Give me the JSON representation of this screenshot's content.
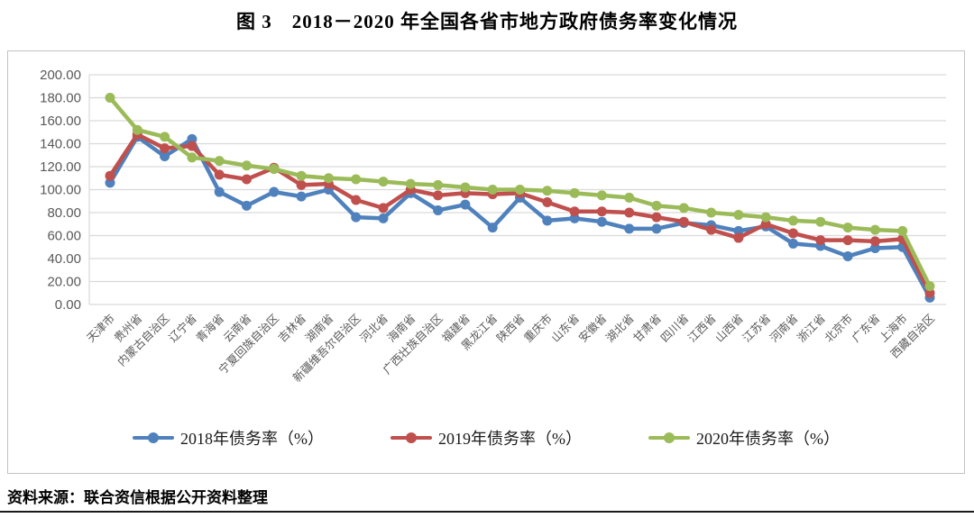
{
  "title": "图 3　2018－2020 年全国各省市地方政府债务率变化情况",
  "source_note": "资料来源：联合资信根据公开资料整理",
  "chart_data": {
    "type": "line",
    "title": "图 3　2018－2020 年全国各省市地方政府债务率变化情况",
    "categories": [
      "天津市",
      "贵州省",
      "内蒙古自治区",
      "辽宁省",
      "青海省",
      "云南省",
      "宁夏回族自治区",
      "吉林省",
      "湖南省",
      "新疆维吾尔自治区",
      "河北省",
      "海南省",
      "广西壮族自治区",
      "福建省",
      "黑龙江省",
      "陕西省",
      "重庆市",
      "山东省",
      "安徽省",
      "湖北省",
      "甘肃省",
      "四川省",
      "江西省",
      "山西省",
      "江苏省",
      "河南省",
      "浙江省",
      "北京市",
      "广东省",
      "上海市",
      "西藏自治区"
    ],
    "series": [
      {
        "name": "2018年债务率（%）",
        "color": "#4F81BD",
        "values": [
          106,
          146,
          129,
          144,
          98,
          86,
          98,
          94,
          100,
          76,
          75,
          97,
          82,
          87,
          67,
          93,
          73,
          75,
          72,
          66,
          66,
          71,
          69,
          64,
          68,
          53,
          51,
          42,
          49,
          50,
          6
        ]
      },
      {
        "name": "2019年债务率（%）",
        "color": "#C0504D",
        "values": [
          112,
          148,
          136,
          138,
          113,
          109,
          119,
          104,
          105,
          91,
          84,
          100,
          95,
          97,
          96,
          97,
          89,
          81,
          81,
          80,
          76,
          72,
          65,
          58,
          70,
          62,
          56,
          56,
          55,
          57,
          10
        ]
      },
      {
        "name": "2020年债务率（%）",
        "color": "#9BBB59",
        "values": [
          180,
          152,
          146,
          128,
          125,
          121,
          118,
          112,
          110,
          109,
          107,
          105,
          104,
          102,
          100,
          100,
          99,
          97,
          95,
          93,
          86,
          84,
          80,
          78,
          76,
          73,
          72,
          67,
          65,
          64,
          16
        ]
      }
    ],
    "ylim": [
      0,
      200
    ],
    "ytick_step": 20,
    "ytick_labels": [
      "0.00",
      "20.00",
      "40.00",
      "60.00",
      "80.00",
      "100.00",
      "120.00",
      "140.00",
      "160.00",
      "180.00",
      "200.00"
    ],
    "grid": "horizontal-only",
    "grid_color": "#D9D9D9",
    "axis_text_color": "#595959",
    "x_label_rotation": -45,
    "legend_position": "bottom"
  }
}
